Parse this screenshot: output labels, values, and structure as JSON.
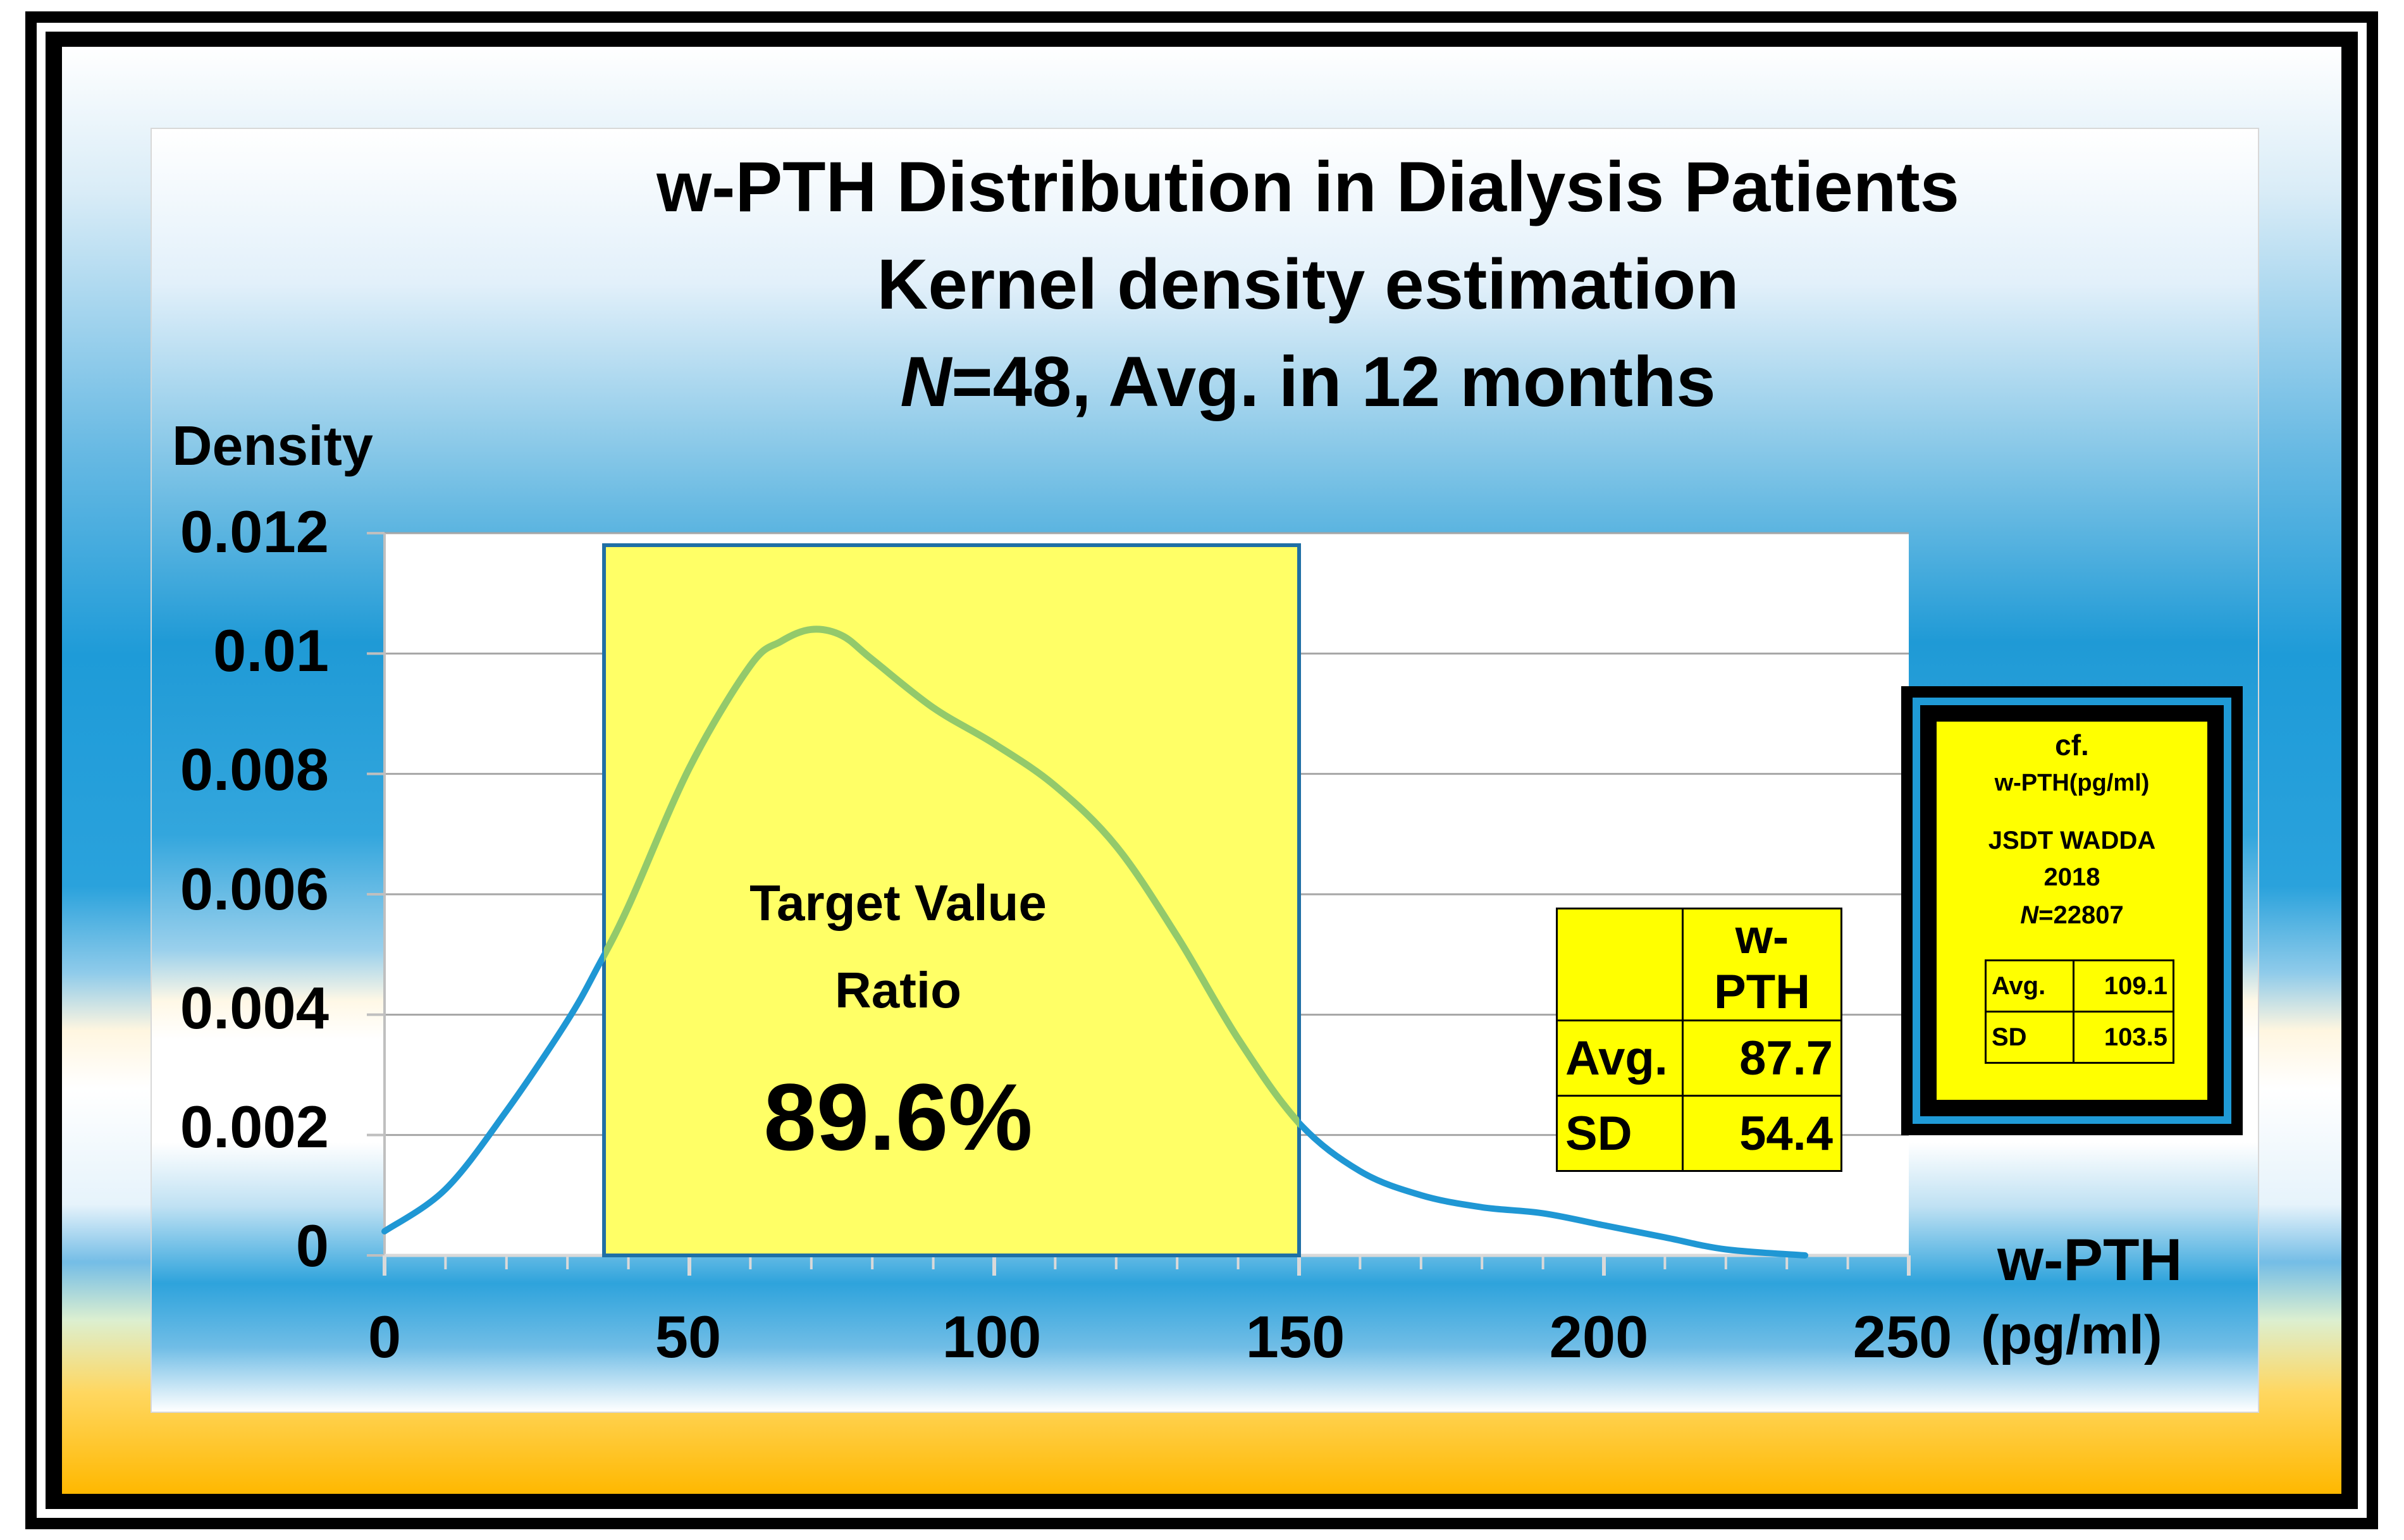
{
  "chart_data": {
    "type": "line",
    "title_lines": [
      "w-PTH Distribution in Dialysis Patients",
      "Kernel density estimation"
    ],
    "subtitle": {
      "n_label": "N",
      "rest": "=48, Avg. in 12 months"
    },
    "ylabel": "Density",
    "xlabel": "w-PTH",
    "xunit": "(pg/ml)",
    "xlim": [
      0,
      250
    ],
    "ylim": [
      0,
      0.012
    ],
    "x_ticks": [
      0,
      50,
      100,
      150,
      200,
      250
    ],
    "y_ticks": [
      0,
      0.002,
      0.004,
      0.006,
      0.008,
      0.01,
      0.012
    ],
    "y_tick_labels": [
      "0",
      "0.002",
      "0.004",
      "0.006",
      "0.008",
      "0.01",
      "0.012"
    ],
    "grid": true,
    "series": [
      {
        "name": "Kernel density",
        "color_outside": "#1f97d4",
        "color_inside": "#93c96b",
        "x": [
          0,
          10,
          20,
          30,
          35,
          40,
          50,
          60,
          65,
          70,
          75,
          80,
          90,
          100,
          110,
          120,
          130,
          140,
          150,
          160,
          170,
          180,
          190,
          200,
          210,
          220,
          233
        ],
        "y": [
          0.0004,
          0.0011,
          0.0024,
          0.0039,
          0.0048,
          0.0058,
          0.0081,
          0.0098,
          0.0102,
          0.0104,
          0.0103,
          0.0099,
          0.0091,
          0.0085,
          0.0078,
          0.0068,
          0.0053,
          0.0036,
          0.0022,
          0.0014,
          0.001,
          0.0008,
          0.0007,
          0.0005,
          0.0003,
          0.0001,
          0.0
        ]
      }
    ],
    "target_range": {
      "x_min": 36,
      "x_max": 150,
      "y_max": 0.0118,
      "fill": "#ffff66",
      "stroke": "#1f6fa5"
    },
    "target_label": [
      "Target Value",
      "Ratio"
    ],
    "target_value": "89.6%",
    "stats": {
      "header": "w-PTH",
      "rows": [
        {
          "label": "Avg.",
          "value": "87.7"
        },
        {
          "label": "SD",
          "value": "54.4"
        }
      ]
    },
    "reference": {
      "lines": [
        "cf.",
        "w-PTH(pg/ml)",
        "JSDT WADDA",
        "2018"
      ],
      "n_label": "N",
      "n_value": "=22807",
      "rows": [
        {
          "label": "Avg.",
          "value": "109.1"
        },
        {
          "label": "SD",
          "value": "103.5"
        }
      ]
    }
  }
}
